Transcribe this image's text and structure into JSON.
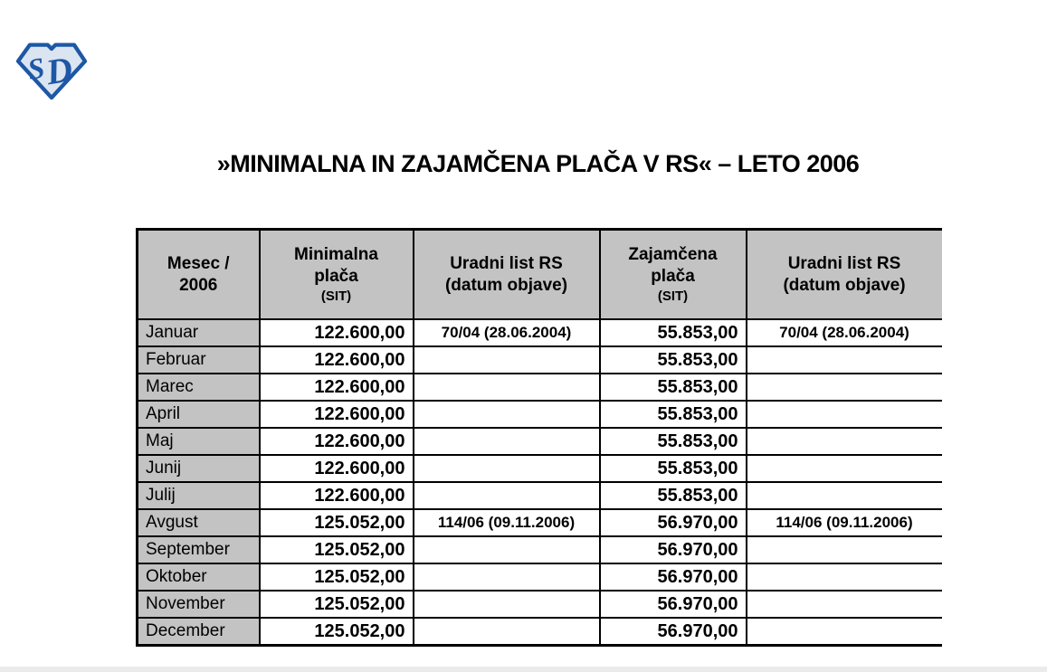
{
  "page": {
    "title": "»MINIMALNA IN ZAJAMČENA PLAČA V RS« – LETO 2006"
  },
  "logo": {
    "letter_s": "S",
    "letter_d": "D",
    "outline_color": "#1d57a5",
    "fill_color": "#dbe4f1"
  },
  "colors": {
    "header_bg": "#c3c3c3",
    "border": "#000000",
    "text": "#000000"
  },
  "table": {
    "columns": [
      {
        "id": "mesec",
        "lines": [
          "Mesec /",
          "2006"
        ],
        "sub": ""
      },
      {
        "id": "minimalna-placa",
        "lines": [
          "Minimalna",
          "plača"
        ],
        "sub": "(SIT)"
      },
      {
        "id": "uradni-list-1",
        "lines": [
          "Uradni list RS",
          "(datum objave)"
        ],
        "sub": ""
      },
      {
        "id": "zajamcena-placa",
        "lines": [
          "Zajamčena",
          "plača"
        ],
        "sub": "(SIT)"
      },
      {
        "id": "uradni-list-2",
        "lines": [
          "Uradni list RS",
          "(datum objave)"
        ],
        "sub": ""
      }
    ],
    "rows": [
      {
        "month": "Januar",
        "minimalna": "122.600,00",
        "minimalna_uradni": "70/04 (28.06.2004)",
        "zajamcena": "55.853,00",
        "zajamcena_uradni": "70/04 (28.06.2004)"
      },
      {
        "month": "Februar",
        "minimalna": "122.600,00",
        "minimalna_uradni": "",
        "zajamcena": "55.853,00",
        "zajamcena_uradni": ""
      },
      {
        "month": "Marec",
        "minimalna": "122.600,00",
        "minimalna_uradni": "",
        "zajamcena": "55.853,00",
        "zajamcena_uradni": ""
      },
      {
        "month": "April",
        "minimalna": "122.600,00",
        "minimalna_uradni": "",
        "zajamcena": "55.853,00",
        "zajamcena_uradni": ""
      },
      {
        "month": "Maj",
        "minimalna": "122.600,00",
        "minimalna_uradni": "",
        "zajamcena": "55.853,00",
        "zajamcena_uradni": ""
      },
      {
        "month": "Junij",
        "minimalna": "122.600,00",
        "minimalna_uradni": "",
        "zajamcena": "55.853,00",
        "zajamcena_uradni": ""
      },
      {
        "month": "Julij",
        "minimalna": "122.600,00",
        "minimalna_uradni": "",
        "zajamcena": "55.853,00",
        "zajamcena_uradni": ""
      },
      {
        "month": "Avgust",
        "minimalna": "125.052,00",
        "minimalna_uradni": "114/06 (09.11.2006)",
        "zajamcena": "56.970,00",
        "zajamcena_uradni": "114/06 (09.11.2006)"
      },
      {
        "month": "September",
        "minimalna": "125.052,00",
        "minimalna_uradni": "",
        "zajamcena": "56.970,00",
        "zajamcena_uradni": ""
      },
      {
        "month": "Oktober",
        "minimalna": "125.052,00",
        "minimalna_uradni": "",
        "zajamcena": "56.970,00",
        "zajamcena_uradni": ""
      },
      {
        "month": "November",
        "minimalna": "125.052,00",
        "minimalna_uradni": "",
        "zajamcena": "56.970,00",
        "zajamcena_uradni": ""
      },
      {
        "month": "December",
        "minimalna": "125.052,00",
        "minimalna_uradni": "",
        "zajamcena": "56.970,00",
        "zajamcena_uradni": ""
      }
    ]
  }
}
